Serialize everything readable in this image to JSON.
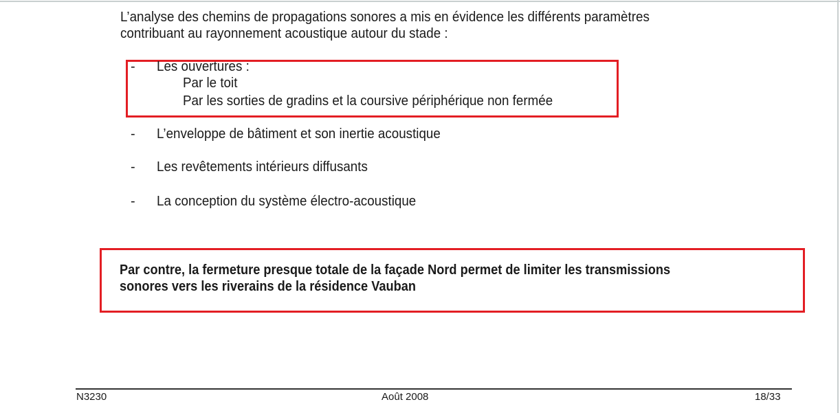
{
  "intro": {
    "line1": "L’analyse des chemins de propagations sonores a mis en évidence les différents paramètres",
    "line2": "contribuant au rayonnement acoustique autour du stade :"
  },
  "list": {
    "bullet": "-",
    "items": [
      {
        "label": "Les ouvertures :",
        "sub": [
          "Par le toit",
          "Par les sorties de gradins et la coursive périphérique non fermée"
        ]
      },
      {
        "label": "L’enveloppe de bâtiment et son inertie acoustique"
      },
      {
        "label": "Les revêtements intérieurs diffusants"
      },
      {
        "label": "La conception du système électro-acoustique"
      }
    ]
  },
  "conclusion": {
    "line1": "Par contre, la fermeture presque totale de la façade Nord permet de limiter les transmissions",
    "line2": "sonores vers les riverains de la résidence Vauban"
  },
  "footer": {
    "reference": "N3230",
    "date": "Août 2008",
    "page": "18/33"
  },
  "colors": {
    "highlight_box": "#e31e24"
  }
}
